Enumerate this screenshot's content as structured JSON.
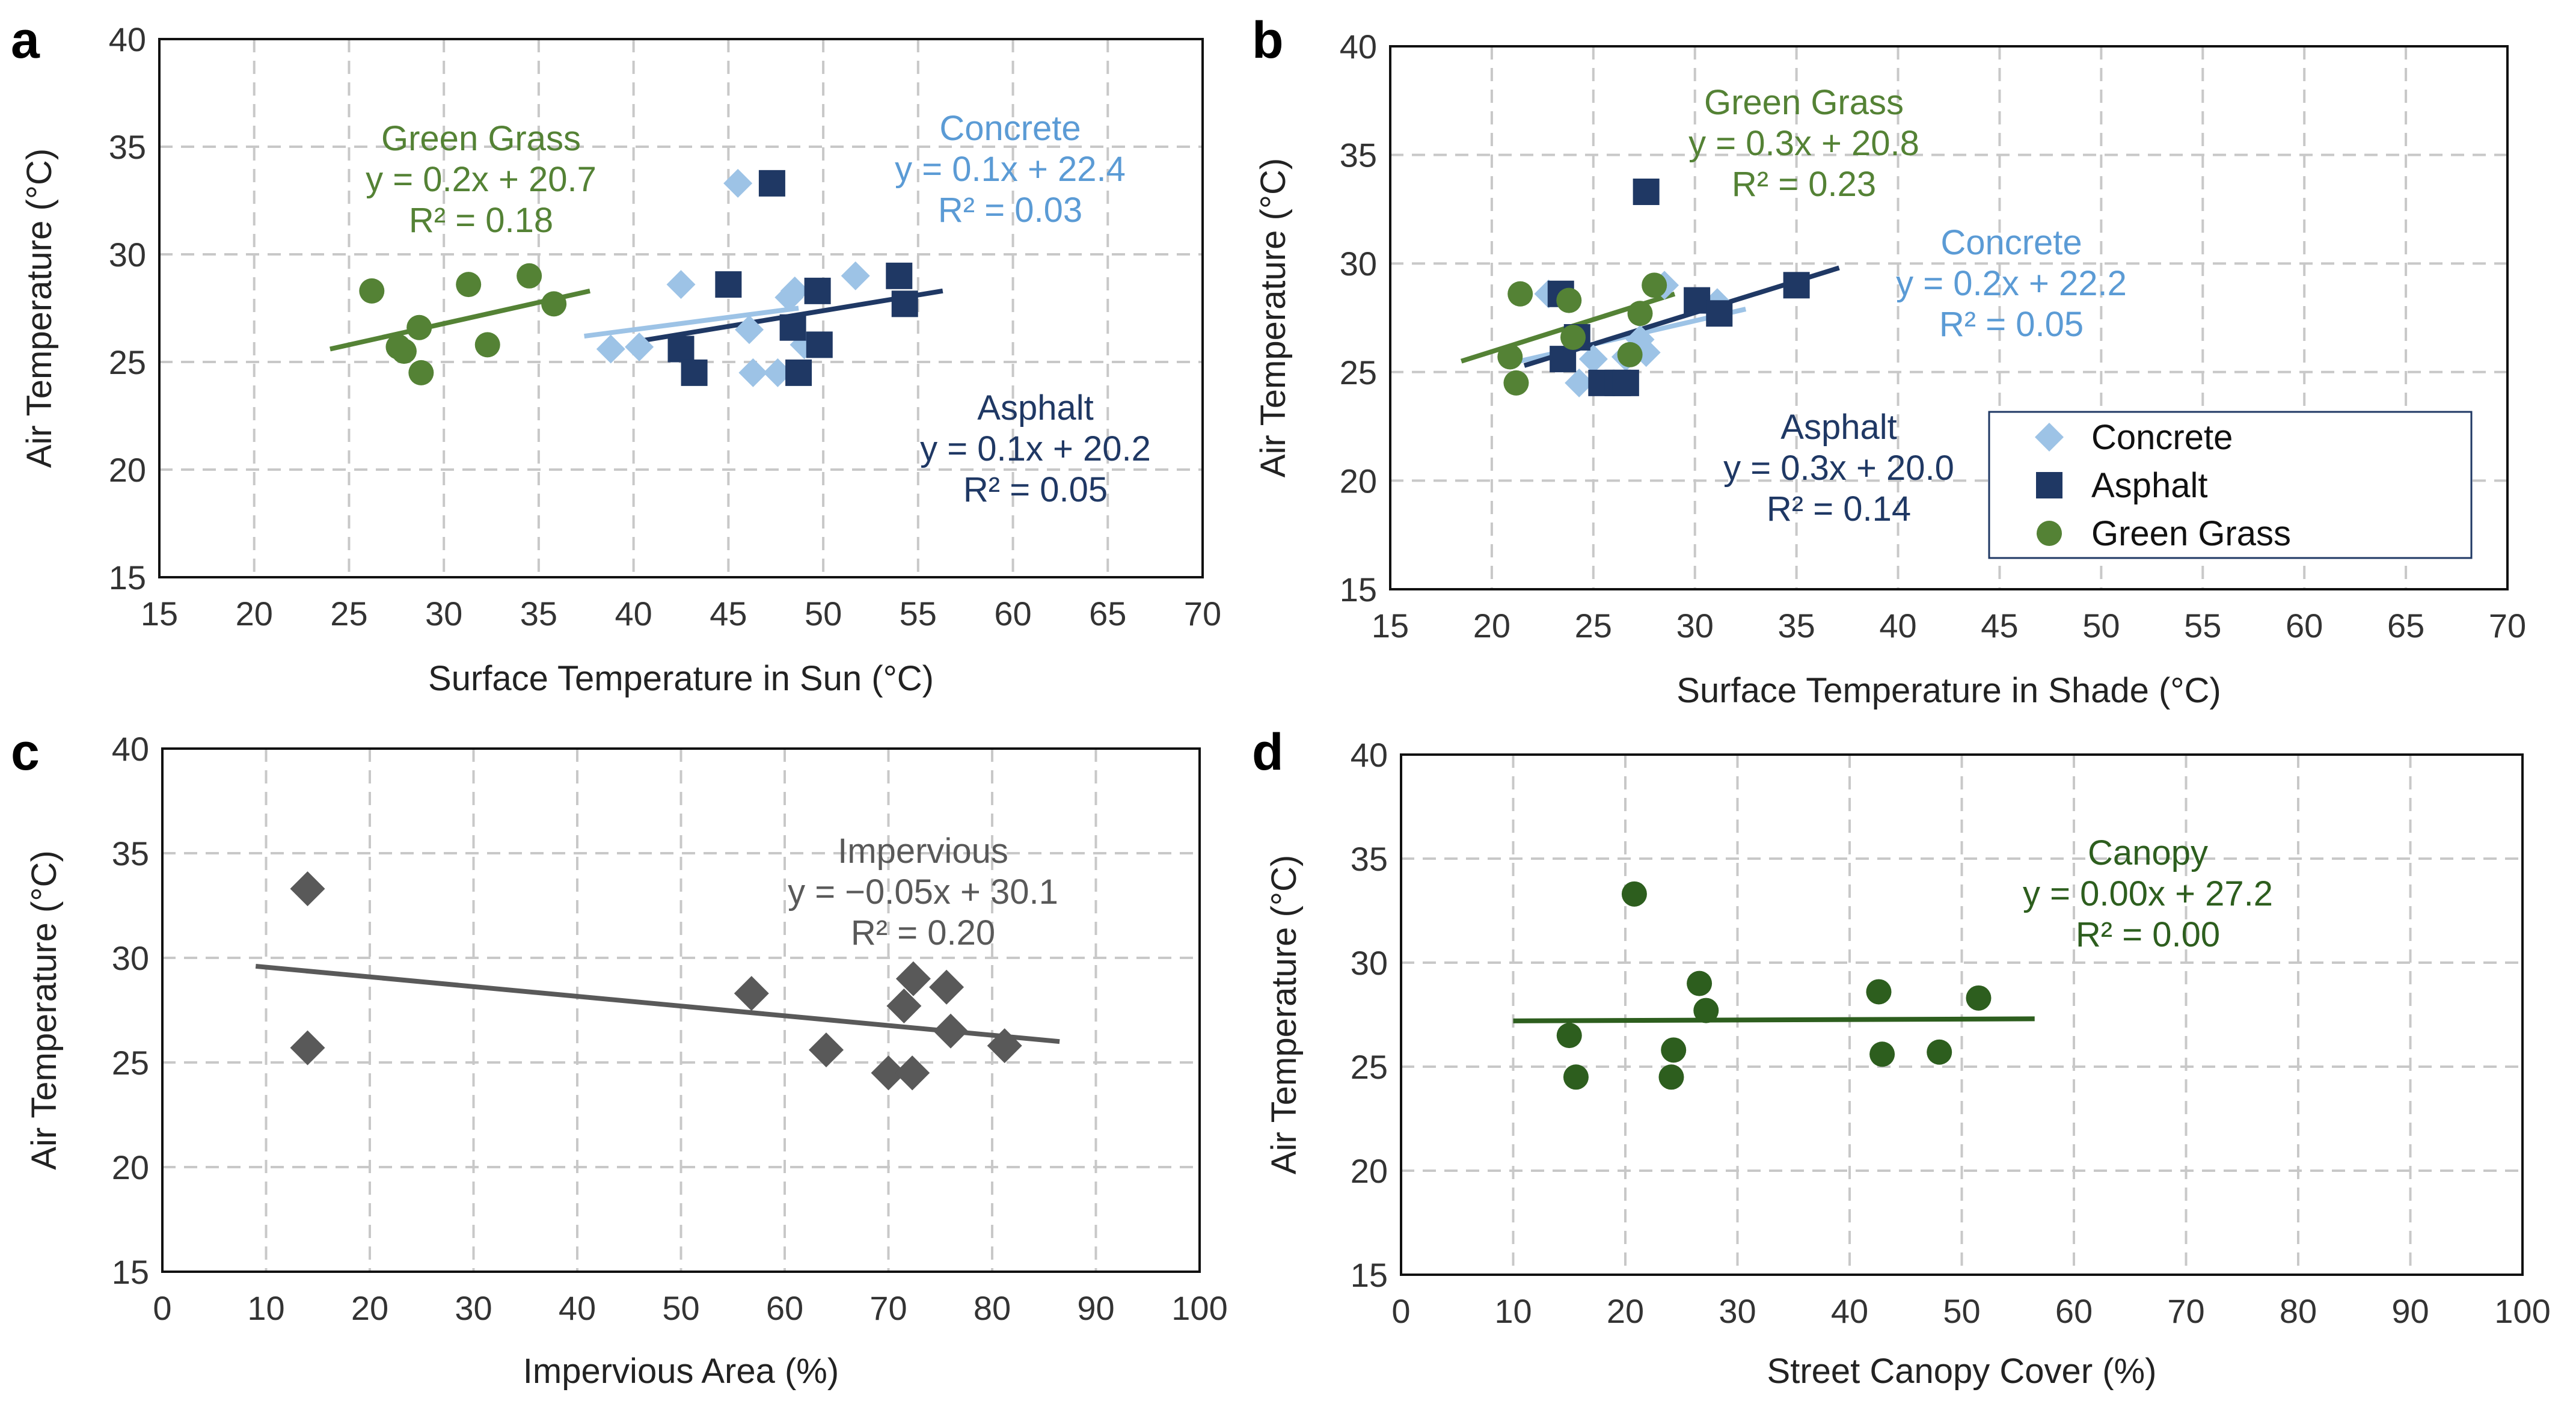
{
  "colors": {
    "concrete": "#9dc3e6",
    "asphalt": "#1f3864",
    "grass": "#548235",
    "grass_text": "#548235",
    "concrete_text": "#5b9bd5",
    "impervious": "#595959",
    "canopy": "#2d5e1e"
  },
  "chart_data": [
    {
      "id": "a",
      "type": "scatter",
      "panel_label": "a",
      "xlabel": "Surface Temperature in Sun (°C)",
      "ylabel": "Air Temperature (°C)",
      "xlim": [
        15,
        70
      ],
      "ylim": [
        15,
        40
      ],
      "xticks": [
        "15",
        "20",
        "25",
        "30",
        "35",
        "40",
        "45",
        "50",
        "55",
        "60",
        "65",
        "70"
      ],
      "yticks": [
        "15",
        "20",
        "25",
        "30",
        "35",
        "40"
      ],
      "series": [
        {
          "name": "Concrete",
          "marker": "diamond-small",
          "color": "concrete",
          "x": [
            38.8,
            40.3,
            42.5,
            45.5,
            46.1,
            46.3,
            47.6,
            48.2,
            48.5,
            49.0,
            51.7
          ],
          "y": [
            25.6,
            25.7,
            28.6,
            33.3,
            26.5,
            24.5,
            24.5,
            28.0,
            28.3,
            25.8,
            29.0
          ],
          "trend": {
            "x": [
              37.4,
              48.7
            ],
            "y": [
              26.2,
              27.5
            ]
          }
        },
        {
          "name": "Asphalt",
          "marker": "square",
          "color": "asphalt",
          "x": [
            42.5,
            43.2,
            45.0,
            47.3,
            48.4,
            48.7,
            49.7,
            49.8,
            54.0,
            54.3
          ],
          "y": [
            25.6,
            24.5,
            28.6,
            33.3,
            26.6,
            24.5,
            28.3,
            25.8,
            29.0,
            27.7
          ],
          "trend": {
            "x": [
              40.5,
              56.3
            ],
            "y": [
              26.0,
              28.3
            ]
          }
        },
        {
          "name": "Green Grass",
          "marker": "circle",
          "color": "grass",
          "x": [
            26.2,
            27.6,
            27.9,
            28.7,
            28.8,
            31.3,
            32.3,
            34.5,
            35.8
          ],
          "y": [
            28.3,
            25.7,
            25.5,
            26.6,
            24.5,
            28.6,
            25.8,
            29.0,
            27.7
          ],
          "trend": {
            "x": [
              24.0,
              37.7
            ],
            "y": [
              25.6,
              28.3
            ]
          }
        }
      ],
      "annotations": [
        {
          "lines": [
            "Green Grass",
            "y = 0.2x + 20.7",
            "R² = 0.18"
          ],
          "color": "grass_text"
        },
        {
          "lines": [
            "Concrete",
            "y = 0.1x + 22.4",
            "R² = 0.03"
          ],
          "color": "concrete_text"
        },
        {
          "lines": [
            "Asphalt",
            "y = 0.1x + 20.2",
            "R² = 0.05"
          ],
          "color": "asphalt"
        }
      ]
    },
    {
      "id": "b",
      "type": "scatter",
      "panel_label": "b",
      "xlabel": "Surface Temperature in Shade (°C)",
      "ylabel": "Air Temperature (°C)",
      "xlim": [
        15,
        70
      ],
      "ylim": [
        15,
        40
      ],
      "xticks": [
        "15",
        "20",
        "25",
        "30",
        "35",
        "40",
        "45",
        "50",
        "55",
        "60",
        "65",
        "70"
      ],
      "yticks": [
        "15",
        "20",
        "25",
        "30",
        "35",
        "40"
      ],
      "legend": {
        "placement": "lower-right",
        "entries": [
          "Concrete",
          "Asphalt",
          "Green Grass"
        ]
      },
      "series": [
        {
          "name": "Concrete",
          "marker": "diamond-small",
          "color": "concrete",
          "x": [
            22.8,
            24.3,
            25.0,
            26.6,
            27.3,
            27.6,
            28.5,
            31.1
          ],
          "y": [
            28.6,
            24.5,
            25.6,
            25.7,
            26.5,
            25.9,
            29.0,
            28.2
          ],
          "trend": {
            "x": [
              20.9,
              32.5
            ],
            "y": [
              25.4,
              27.9
            ]
          }
        },
        {
          "name": "Asphalt",
          "marker": "square",
          "color": "asphalt",
          "x": [
            23.4,
            23.5,
            24.2,
            25.4,
            26.2,
            26.6,
            27.6,
            30.1,
            31.2,
            35.0
          ],
          "y": [
            28.6,
            25.6,
            26.6,
            24.5,
            24.5,
            24.5,
            33.3,
            28.3,
            27.7,
            29.0
          ],
          "trend": {
            "x": [
              21.6,
              37.1
            ],
            "y": [
              25.3,
              29.8
            ]
          }
        },
        {
          "name": "Green Grass",
          "marker": "circle",
          "color": "grass",
          "x": [
            20.9,
            21.2,
            21.4,
            23.8,
            24.0,
            26.8,
            27.3,
            28.0
          ],
          "y": [
            25.7,
            24.5,
            28.6,
            28.3,
            26.6,
            25.8,
            27.7,
            29.0
          ],
          "trend": {
            "x": [
              18.5,
              29.0
            ],
            "y": [
              25.5,
              28.6
            ]
          }
        }
      ],
      "annotations": [
        {
          "lines": [
            "Green Grass",
            "y = 0.3x + 20.8",
            "R² = 0.23"
          ],
          "color": "grass_text"
        },
        {
          "lines": [
            "Concrete",
            "y = 0.2x + 22.2",
            "R² = 0.05"
          ],
          "color": "concrete_text"
        },
        {
          "lines": [
            "Asphalt",
            "y = 0.3x + 20.0",
            "R² = 0.14"
          ],
          "color": "asphalt"
        }
      ]
    },
    {
      "id": "c",
      "type": "scatter",
      "panel_label": "c",
      "xlabel": "Impervious Area (%)",
      "ylabel": "Air Temperature (°C)",
      "xlim": [
        0,
        100
      ],
      "ylim": [
        15,
        40
      ],
      "xticks": [
        "0",
        "10",
        "20",
        "30",
        "40",
        "50",
        "60",
        "70",
        "80",
        "90",
        "100"
      ],
      "yticks": [
        "15",
        "20",
        "25",
        "30",
        "35",
        "40"
      ],
      "series": [
        {
          "name": "Impervious",
          "marker": "diamond-large",
          "color": "impervious",
          "x": [
            14,
            14,
            56.8,
            64,
            70,
            71.5,
            72.3,
            72.4,
            75.6,
            76,
            81.2
          ],
          "y": [
            33.3,
            25.7,
            28.3,
            25.6,
            24.5,
            27.7,
            24.5,
            29.0,
            28.6,
            26.5,
            25.8
          ],
          "trend": {
            "x": [
              9,
              86.5
            ],
            "y": [
              29.6,
              26.0
            ]
          }
        }
      ],
      "annotations": [
        {
          "lines": [
            "Impervious",
            "y = −0.05x + 30.1",
            "R² = 0.20"
          ],
          "color": "impervious"
        }
      ]
    },
    {
      "id": "d",
      "type": "scatter",
      "panel_label": "d",
      "xlabel": "Street Canopy Cover (%)",
      "ylabel": "Air Temperature (°C)",
      "xlim": [
        0,
        100
      ],
      "ylim": [
        15,
        40
      ],
      "xticks": [
        "0",
        "10",
        "20",
        "30",
        "40",
        "50",
        "60",
        "70",
        "80",
        "90",
        "100"
      ],
      "yticks": [
        "15",
        "20",
        "25",
        "30",
        "35",
        "40"
      ],
      "series": [
        {
          "name": "Canopy",
          "marker": "circle",
          "color": "canopy",
          "x": [
            15,
            15.6,
            20.8,
            24.1,
            24.3,
            26.6,
            27.2,
            42.6,
            42.9,
            48,
            51.5
          ],
          "y": [
            26.5,
            24.5,
            33.3,
            24.5,
            25.8,
            29.0,
            27.7,
            28.6,
            25.6,
            25.7,
            28.3
          ],
          "trend": {
            "x": [
              10,
              56.5
            ],
            "y": [
              27.2,
              27.3
            ]
          }
        }
      ],
      "annotations": [
        {
          "lines": [
            "Canopy",
            "y = 0.00x + 27.2",
            "R² = 0.00"
          ],
          "color": "canopy"
        }
      ]
    }
  ]
}
